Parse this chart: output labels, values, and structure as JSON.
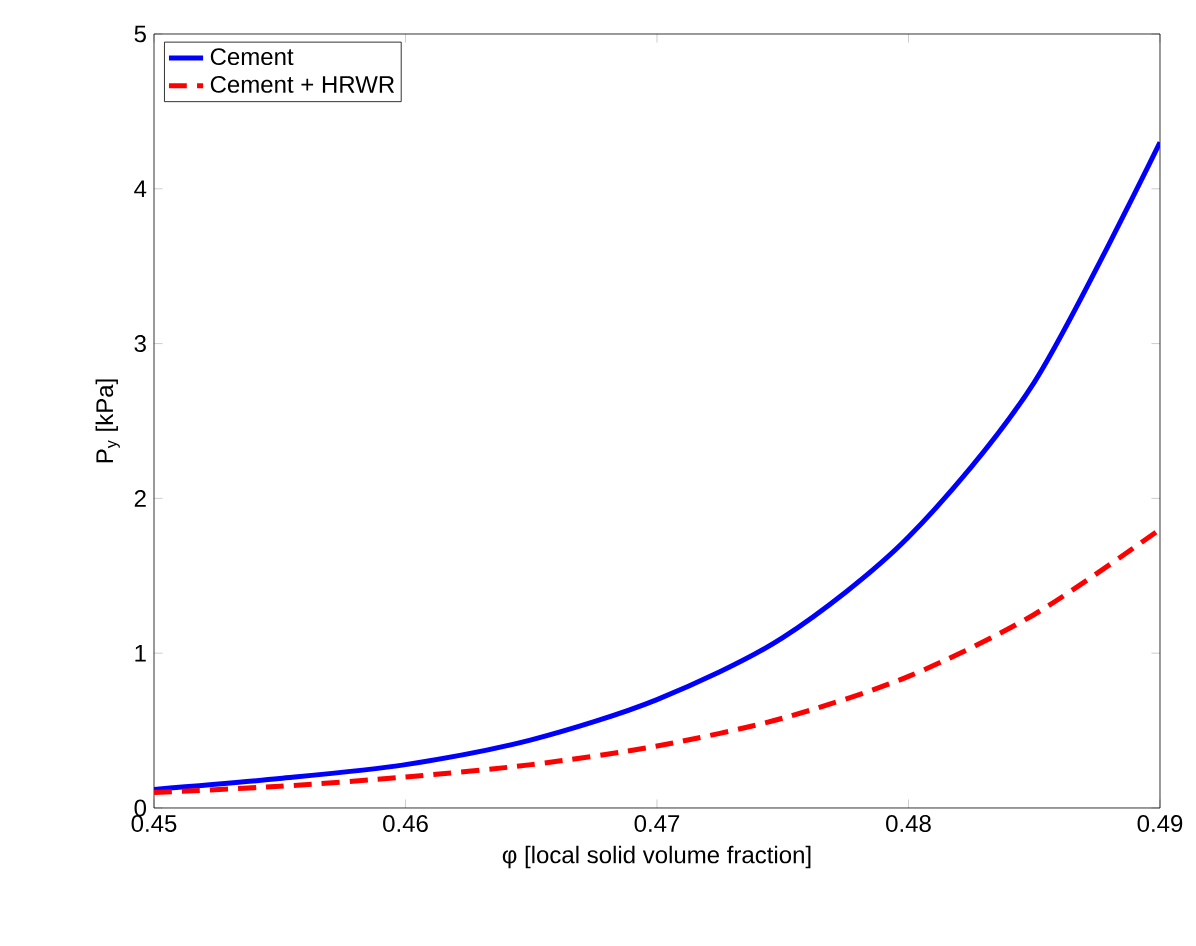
{
  "chart_data": {
    "type": "line",
    "xlabel": "φ [local solid volume fraction]",
    "ylabel": "P$_{y}$ [kPa]",
    "xlim": [
      0.45,
      0.49
    ],
    "xticks": [
      0.45,
      0.46,
      0.47,
      0.48,
      0.49
    ],
    "ylim": [
      0,
      5
    ],
    "yticks": [
      0,
      1,
      2,
      3,
      4,
      5
    ],
    "legend": "top left",
    "grid": false,
    "series": [
      {
        "name": "Cement",
        "color": "#0000ff",
        "line_style": "solid",
        "x": [
          0.45,
          0.455,
          0.46,
          0.465,
          0.47,
          0.475,
          0.48,
          0.485,
          0.49
        ],
        "values": [
          0.12,
          0.19,
          0.28,
          0.44,
          0.7,
          1.1,
          1.75,
          2.75,
          4.3
        ]
      },
      {
        "name": "Cement + HRWR",
        "color": "#ff0000",
        "line_style": "dashed",
        "x": [
          0.45,
          0.455,
          0.46,
          0.465,
          0.47,
          0.475,
          0.48,
          0.485,
          0.49
        ],
        "values": [
          0.1,
          0.14,
          0.2,
          0.28,
          0.4,
          0.58,
          0.85,
          1.25,
          1.8
        ]
      }
    ]
  }
}
